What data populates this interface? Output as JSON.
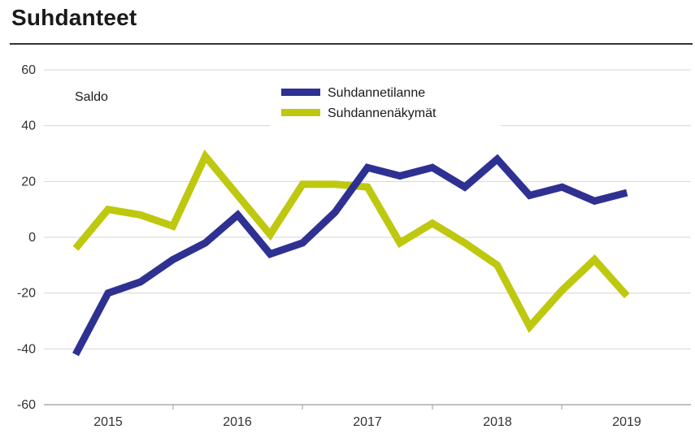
{
  "header": {
    "title": "Suhdanteet"
  },
  "chart_data": {
    "type": "line",
    "title": "",
    "ylabel": "Saldo",
    "xlabel": "",
    "ylim": [
      -60,
      60
    ],
    "yticks": [
      60,
      40,
      20,
      0,
      -20,
      -40,
      -60
    ],
    "year_labels": [
      "2015",
      "2016",
      "2017",
      "2018",
      "2019"
    ],
    "grid": true,
    "legend_position": "top-center",
    "series": [
      {
        "name": "Suhdannetilanne",
        "color": "#2e3192",
        "values": [
          -42,
          -20,
          -16,
          -8,
          -2,
          8,
          -6,
          -2,
          9,
          25,
          22,
          25,
          18,
          28,
          15,
          18,
          13,
          16
        ]
      },
      {
        "name": "Suhdannenäkymät",
        "color": "#bec80f",
        "values": [
          -4,
          10,
          8,
          4,
          29,
          15,
          1,
          19,
          19,
          18,
          -2,
          5,
          -2,
          -10,
          -32,
          -19,
          -8,
          -21
        ]
      }
    ]
  }
}
